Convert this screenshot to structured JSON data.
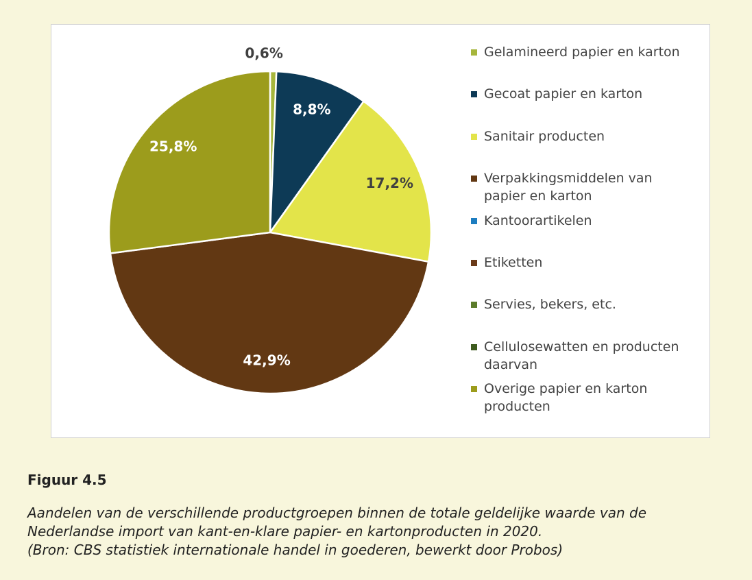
{
  "chart_data": {
    "type": "pie",
    "categories": [
      "Gelamineerd papier en karton",
      "Gecoat papier en karton",
      "Sanitair producten",
      "Verpakkingsmiddelen van papier en karton",
      "Kantoorartikelen",
      "Etiketten",
      "Servies, bekers, etc.",
      "Cellulosewatten en producten daarvan",
      "Overige papier en karton producten"
    ],
    "values": [
      0.6,
      8.8,
      17.2,
      42.9,
      0,
      0,
      0,
      0,
      25.8
    ],
    "value_labels": [
      "0,6%",
      "8,8%",
      "17,2%",
      "42,9%",
      null,
      null,
      null,
      null,
      "25,8%"
    ],
    "colors": [
      "#a6b63c",
      "#0d3a56",
      "#e3e44a",
      "#623813",
      "#1d7dc0",
      "#6a3a18",
      "#5b7b2b",
      "#3e5b1f",
      "#9c9c1c"
    ],
    "label_colors": [
      "#404040",
      "#ffffff",
      "#404040",
      "#ffffff",
      null,
      null,
      null,
      null,
      "#ffffff"
    ]
  },
  "figure": {
    "label": "Figuur 4.5",
    "caption": [
      "Aandelen van de verschillende productgroepen binnen de totale geldelijke waarde van de",
      "Nederlandse import van kant-en-klare papier- en kartonproducten in 2020.",
      "(Bron: CBS statistiek internationale handel in goederen, bewerkt door Probos)"
    ]
  }
}
